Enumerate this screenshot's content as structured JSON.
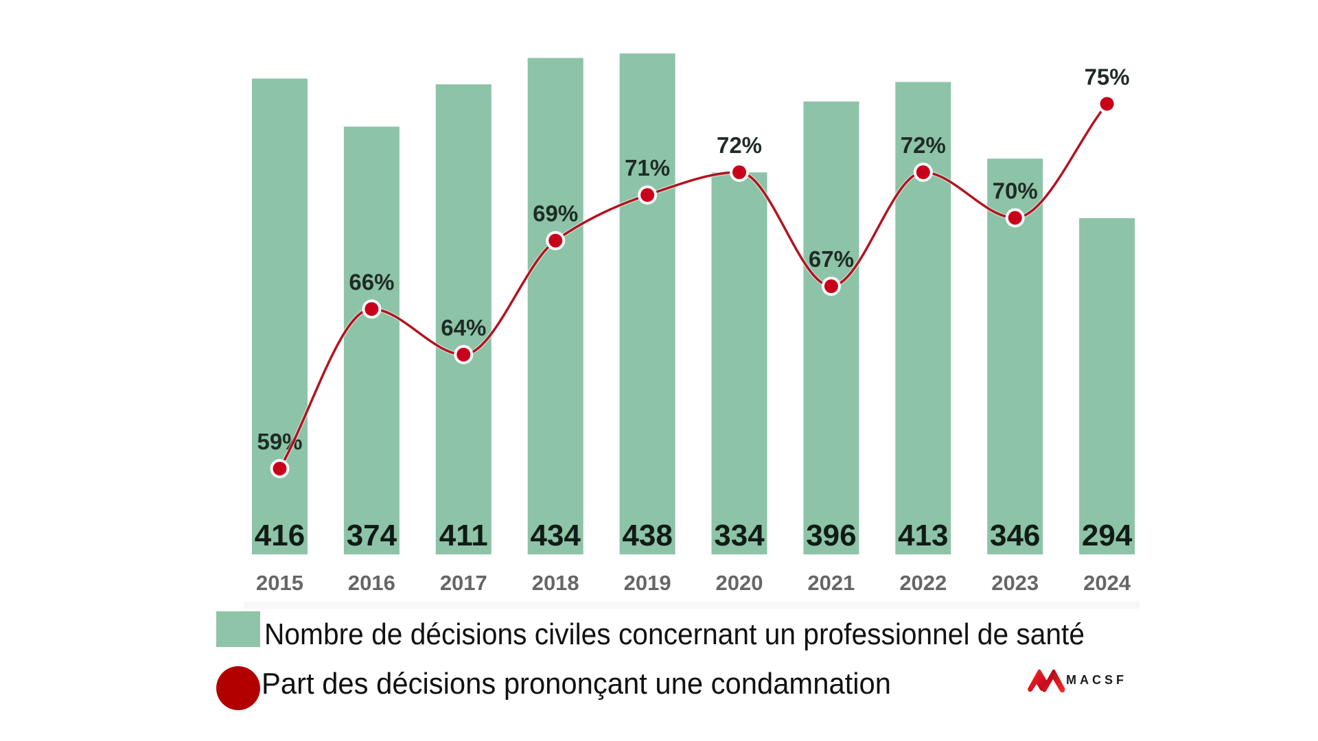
{
  "chart_data": {
    "type": "bar",
    "title": "",
    "xlabel": "",
    "ylabel": "",
    "categories": [
      "2015",
      "2016",
      "2017",
      "2018",
      "2019",
      "2020",
      "2021",
      "2022",
      "2023",
      "2024"
    ],
    "series": [
      {
        "name": "Nombre de décisions civiles concernant un professionnel de santé",
        "type": "bar",
        "values": [
          416,
          374,
          411,
          434,
          438,
          334,
          396,
          413,
          346,
          294
        ],
        "labels": [
          "416",
          "374",
          "411",
          "434",
          "438",
          "334",
          "396",
          "413",
          "346",
          "294"
        ],
        "color": "#8dc3a7"
      },
      {
        "name": "Part des décisions prononçant une condamnation",
        "type": "line",
        "values": [
          59,
          66,
          64,
          69,
          71,
          72,
          67,
          72,
          70,
          75
        ],
        "labels": [
          "59%",
          "66%",
          "64%",
          "69%",
          "71%",
          "72%",
          "67%",
          "72%",
          "70%",
          "75%"
        ],
        "unit": "%",
        "color": "#c0001a",
        "curve": "smooth"
      }
    ],
    "ylim_bars": [
      0,
      485
    ],
    "grid": false,
    "legend": "bottom-left"
  },
  "legend": {
    "items": [
      {
        "label": "Nombre de décisions civiles concernant un professionnel de santé",
        "marker": "square",
        "color": "#8fc4a9"
      },
      {
        "label": "Part des décisions prononçant une condamnation",
        "marker": "circle",
        "color": "#b20000"
      }
    ]
  },
  "logo": {
    "text": "MACSF",
    "icon": "macsf-m-logo-icon",
    "color": "#e3202a"
  },
  "colors": {
    "bar": "#8dc3a7",
    "line": "#b3121f",
    "dot": "#c8001a",
    "pct_label": "#1f2b25",
    "value_label": "#111b16",
    "year_label": "#666666"
  }
}
